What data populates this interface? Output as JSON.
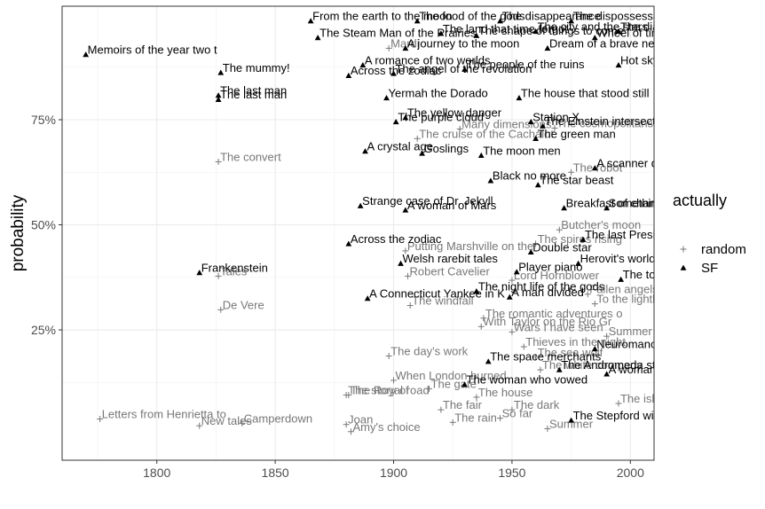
{
  "chart_data": {
    "type": "scatter",
    "xlabel": "",
    "ylabel": "probability",
    "xlim": [
      1760,
      2010
    ],
    "ylim": [
      -0.06,
      1.02
    ],
    "x_ticks": [
      1800,
      1850,
      1900,
      1950,
      2000
    ],
    "x_tick_labels": [
      "1800",
      "1850",
      "1900",
      "1950",
      "2000"
    ],
    "y_ticks": [
      0.25,
      0.5,
      0.75
    ],
    "y_tick_labels": [
      "25%",
      "50%",
      "75%"
    ],
    "grid": true,
    "legend": {
      "title": "actually",
      "position": "right",
      "entries": [
        {
          "label": "random",
          "marker": "plus",
          "color": "#777777"
        },
        {
          "label": "SF",
          "marker": "triangle",
          "color": "#000000"
        }
      ]
    },
    "colors": {
      "random": "#777777",
      "SF": "#000000",
      "grid": "#ebebeb"
    },
    "series": [
      {
        "name": "SF",
        "points": [
          {
            "x": 1770,
            "y": 0.905,
            "label": "Memoirs of the year two t"
          },
          {
            "x": 1827,
            "y": 0.862,
            "label": "The mummy!"
          },
          {
            "x": 1826,
            "y": 0.808,
            "label": "The last man"
          },
          {
            "x": 1826,
            "y": 0.798,
            "label": "The last man"
          },
          {
            "x": 1818,
            "y": 0.386,
            "label": "Frankenstein"
          },
          {
            "x": 1868,
            "y": 0.945,
            "label": "The Steam Man of the Prairies"
          },
          {
            "x": 1865,
            "y": 0.985,
            "label": "From the earth to the moon"
          },
          {
            "x": 1881,
            "y": 0.855,
            "label": "Across the zodiac"
          },
          {
            "x": 1881,
            "y": 0.455,
            "label": "Across the zodiac"
          },
          {
            "x": 1886,
            "y": 0.545,
            "label": "Strange case of Dr. Jekyll"
          },
          {
            "x": 1889,
            "y": 0.325,
            "label": "A Connecticut Yankee in K"
          },
          {
            "x": 1888,
            "y": 0.675,
            "label": "A crystal age"
          },
          {
            "x": 1887,
            "y": 0.88,
            "label": "A romance of two worlds"
          },
          {
            "x": 1897,
            "y": 0.802,
            "label": "Yermah the Dorado"
          },
          {
            "x": 1901,
            "y": 0.745,
            "label": "The purple cloud"
          },
          {
            "x": 1903,
            "y": 0.408,
            "label": "Welsh rarebit tales"
          },
          {
            "x": 1905,
            "y": 0.535,
            "label": "A woman of Mars"
          },
          {
            "x": 1912,
            "y": 0.67,
            "label": "Goslings"
          },
          {
            "x": 1937,
            "y": 0.665,
            "label": "The moon men"
          },
          {
            "x": 1941,
            "y": 0.605,
            "label": "Black no more"
          },
          {
            "x": 1949,
            "y": 0.328,
            "label": "A man divided"
          },
          {
            "x": 1952,
            "y": 0.388,
            "label": "Player piano"
          },
          {
            "x": 1935,
            "y": 0.342,
            "label": "The night life of the gods"
          },
          {
            "x": 1953,
            "y": 0.802,
            "label": "The house that stood still"
          },
          {
            "x": 1961,
            "y": 0.595,
            "label": "The star beast"
          },
          {
            "x": 1963,
            "y": 0.735,
            "label": "The Einstein intersection"
          },
          {
            "x": 1958,
            "y": 0.435,
            "label": "Double star"
          },
          {
            "x": 1978,
            "y": 0.408,
            "label": "Herovit's world"
          },
          {
            "x": 1972,
            "y": 0.54,
            "label": "Breakfast of champions"
          },
          {
            "x": 1980,
            "y": 0.465,
            "label": "The last President"
          },
          {
            "x": 1975,
            "y": 0.035,
            "label": "The Stepford wives"
          },
          {
            "x": 1990,
            "y": 0.145,
            "label": "A woman on the edge of time"
          },
          {
            "x": 1985,
            "y": 0.635,
            "label": "A scanner darkly"
          },
          {
            "x": 1996,
            "y": 0.37,
            "label": "The towers"
          },
          {
            "x": 1958,
            "y": 0.745,
            "label": "Station X"
          },
          {
            "x": 1930,
            "y": 0.12,
            "label": "The woman who vowed"
          },
          {
            "x": 1970,
            "y": 0.155,
            "label": "The Andromeda strain"
          },
          {
            "x": 1960,
            "y": 0.705,
            "label": "The green man"
          },
          {
            "x": 1940,
            "y": 0.175,
            "label": "The space merchants"
          },
          {
            "x": 1990,
            "y": 0.54,
            "label": "Something wicked this way"
          },
          {
            "x": 1995,
            "y": 0.88,
            "label": "Hot sky at midnight"
          },
          {
            "x": 1985,
            "y": 0.205,
            "label": "Neuromancer"
          },
          {
            "x": 1910,
            "y": 0.985,
            "label": "The food of the gods"
          },
          {
            "x": 1920,
            "y": 0.955,
            "label": "The land that time forgot"
          },
          {
            "x": 1905,
            "y": 0.92,
            "label": "A journey to the moon"
          },
          {
            "x": 1900,
            "y": 0.86,
            "label": "The angel of the revolution"
          },
          {
            "x": 1930,
            "y": 0.87,
            "label": "The people of the ruins"
          },
          {
            "x": 1905,
            "y": 0.755,
            "label": "The yellow danger"
          },
          {
            "x": 1935,
            "y": 0.95,
            "label": "The shape of things to come"
          },
          {
            "x": 1945,
            "y": 0.985,
            "label": "The disappearance"
          },
          {
            "x": 1960,
            "y": 0.96,
            "label": "The city and the stars"
          },
          {
            "x": 1965,
            "y": 0.92,
            "label": "Dream of a brave new world"
          },
          {
            "x": 1975,
            "y": 0.985,
            "label": "The dispossessed"
          },
          {
            "x": 1985,
            "y": 0.945,
            "label": "Wheel of time"
          },
          {
            "x": 1995,
            "y": 0.96,
            "label": "The diamond age"
          }
        ]
      },
      {
        "name": "random",
        "points": [
          {
            "x": 1826,
            "y": 0.65,
            "label": "The convert"
          },
          {
            "x": 1826,
            "y": 0.378,
            "label": "Tales"
          },
          {
            "x": 1827,
            "y": 0.298,
            "label": "De Vere"
          },
          {
            "x": 1776,
            "y": 0.038,
            "label": "Letters from Henrietta to"
          },
          {
            "x": 1818,
            "y": 0.022,
            "label": "New tales"
          },
          {
            "x": 1836,
            "y": 0.028,
            "label": "Camperdown"
          },
          {
            "x": 1905,
            "y": 0.438,
            "label": "Putting Marshville on the"
          },
          {
            "x": 1906,
            "y": 0.378,
            "label": "Robert Cavelier"
          },
          {
            "x": 1907,
            "y": 0.308,
            "label": "The windfall"
          },
          {
            "x": 1898,
            "y": 0.188,
            "label": "The day's work"
          },
          {
            "x": 1900,
            "y": 0.13,
            "label": "When London burned"
          },
          {
            "x": 1881,
            "y": 0.095,
            "label": "The Royal road"
          },
          {
            "x": 1880,
            "y": 0.095,
            "label": "The story of"
          },
          {
            "x": 1880,
            "y": 0.025,
            "label": "Joan"
          },
          {
            "x": 1882,
            "y": 0.008,
            "label": "Amy's choice"
          },
          {
            "x": 1898,
            "y": 0.92,
            "label": "Mardi"
          },
          {
            "x": 1910,
            "y": 0.705,
            "label": "The cruise of the Cachalot"
          },
          {
            "x": 1928,
            "y": 0.728,
            "label": "Many dimensions"
          },
          {
            "x": 1950,
            "y": 0.368,
            "label": "Lord Hornblower"
          },
          {
            "x": 1938,
            "y": 0.278,
            "label": "The romantic adventures o"
          },
          {
            "x": 1937,
            "y": 0.258,
            "label": "With Taylor on the Rio Gr"
          },
          {
            "x": 1950,
            "y": 0.245,
            "label": "Wars I have seen"
          },
          {
            "x": 1955,
            "y": 0.21,
            "label": "Thieves in the night"
          },
          {
            "x": 1960,
            "y": 0.185,
            "label": "The sea wolf"
          },
          {
            "x": 1962,
            "y": 0.155,
            "label": "The white company"
          },
          {
            "x": 1990,
            "y": 0.235,
            "label": "Summer for M"
          },
          {
            "x": 1985,
            "y": 0.312,
            "label": "To the lighthouse"
          },
          {
            "x": 1982,
            "y": 0.335,
            "label": "Fallen angels"
          },
          {
            "x": 1970,
            "y": 0.488,
            "label": "Butcher's moon"
          },
          {
            "x": 1960,
            "y": 0.455,
            "label": "The spires rising"
          },
          {
            "x": 1975,
            "y": 0.625,
            "label": "The robot"
          },
          {
            "x": 1968,
            "y": 0.73,
            "label": "The cosmopolitans"
          },
          {
            "x": 1950,
            "y": 0.06,
            "label": "The dark"
          },
          {
            "x": 1945,
            "y": 0.04,
            "label": "So far"
          },
          {
            "x": 1920,
            "y": 0.06,
            "label": "The fair"
          },
          {
            "x": 1925,
            "y": 0.03,
            "label": "The rain"
          },
          {
            "x": 1965,
            "y": 0.015,
            "label": "Summer"
          },
          {
            "x": 1995,
            "y": 0.075,
            "label": "The island"
          },
          {
            "x": 1935,
            "y": 0.09,
            "label": "The house"
          },
          {
            "x": 1915,
            "y": 0.11,
            "label": "The gate"
          }
        ]
      }
    ]
  }
}
